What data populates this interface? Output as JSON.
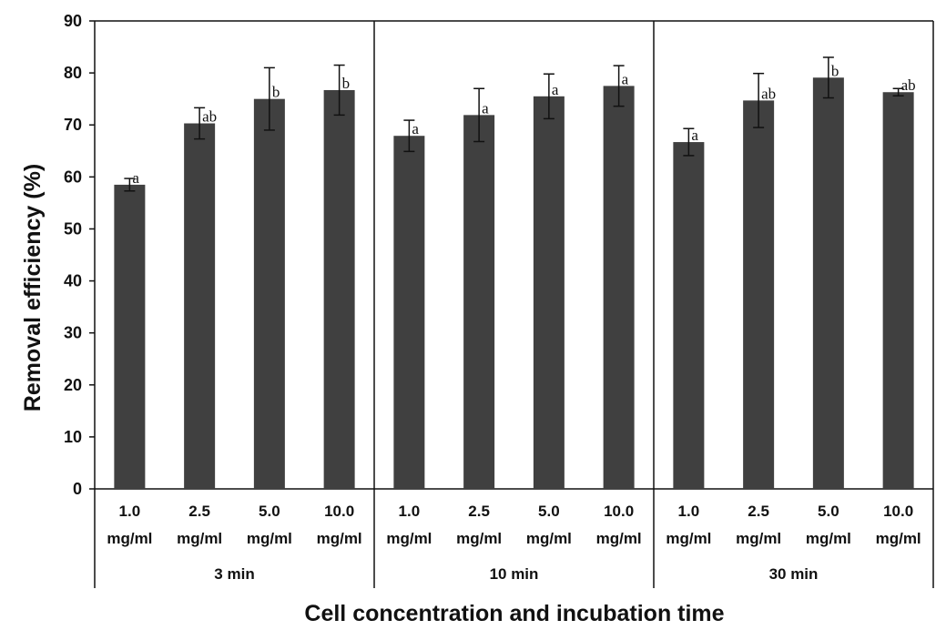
{
  "chart_data": {
    "type": "bar",
    "title": "",
    "ylabel": "Removal efficiency (%)",
    "xlabel": "Cell concentration and incubation time",
    "ylim": [
      0,
      90
    ],
    "yticks": [
      0,
      10,
      20,
      30,
      40,
      50,
      60,
      70,
      80,
      90
    ],
    "grid": false,
    "bar_color": "#404040",
    "groups": [
      {
        "label": "3 min",
        "categories": [
          {
            "value": "1.0",
            "unit": "mg/ml"
          },
          {
            "value": "2.5",
            "unit": "mg/ml"
          },
          {
            "value": "5.0",
            "unit": "mg/ml"
          },
          {
            "value": "10.0",
            "unit": "mg/ml"
          }
        ],
        "values": [
          58.5,
          70.3,
          75.0,
          76.7
        ],
        "errors": [
          1.2,
          3.0,
          6.0,
          4.8
        ],
        "significance": [
          "a",
          "ab",
          "b",
          "b"
        ]
      },
      {
        "label": "10 min",
        "categories": [
          {
            "value": "1.0",
            "unit": "mg/ml"
          },
          {
            "value": "2.5",
            "unit": "mg/ml"
          },
          {
            "value": "5.0",
            "unit": "mg/ml"
          },
          {
            "value": "10.0",
            "unit": "mg/ml"
          }
        ],
        "values": [
          67.9,
          71.9,
          75.5,
          77.5
        ],
        "errors": [
          3.0,
          5.1,
          4.3,
          3.9
        ],
        "significance": [
          "a",
          "a",
          "a",
          "a"
        ]
      },
      {
        "label": "30 min",
        "categories": [
          {
            "value": "1.0",
            "unit": "mg/ml"
          },
          {
            "value": "2.5",
            "unit": "mg/ml"
          },
          {
            "value": "5.0",
            "unit": "mg/ml"
          },
          {
            "value": "10.0",
            "unit": "mg/ml"
          }
        ],
        "values": [
          66.7,
          74.7,
          79.1,
          76.3
        ],
        "errors": [
          2.6,
          5.2,
          3.9,
          0.7
        ],
        "significance": [
          "a",
          "ab",
          "b",
          "ab"
        ]
      }
    ]
  }
}
